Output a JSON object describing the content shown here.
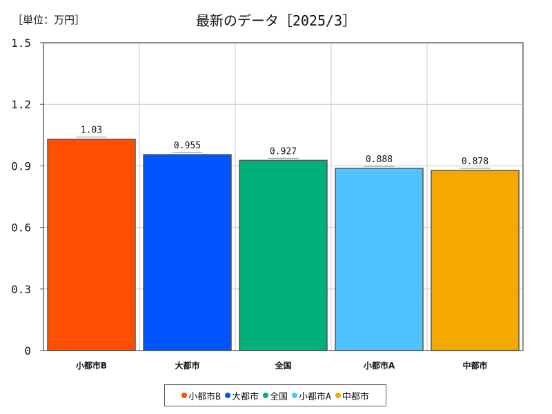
{
  "header": {
    "unit_label": "［単位：万円］",
    "title": "最新のデータ［2025/3］"
  },
  "chart_data": {
    "type": "bar",
    "title": "最新のデータ［2025/3］",
    "unit": "［単位：万円］",
    "categories": [
      "小都市B",
      "大都市",
      "全国",
      "小都市A",
      "中都市"
    ],
    "values": [
      1.03,
      0.955,
      0.927,
      0.888,
      0.878
    ],
    "value_labels": [
      "1.03",
      "0.955",
      "0.927",
      "0.888",
      "0.878"
    ],
    "colors": [
      "#ff4f00",
      "#0055ff",
      "#00b07a",
      "#4fc3ff",
      "#f5a800"
    ],
    "ylim": [
      0,
      1.5
    ],
    "yticks": [
      0,
      0.3,
      0.6,
      0.9,
      1.2,
      1.5
    ],
    "ytick_labels": [
      "0",
      "0.3",
      "0.6",
      "0.9",
      "1.2",
      "1.5"
    ],
    "grid": true,
    "legend_position": "bottom-center",
    "legend": [
      "小都市B",
      "大都市",
      "全国",
      "小都市A",
      "中都市"
    ]
  }
}
